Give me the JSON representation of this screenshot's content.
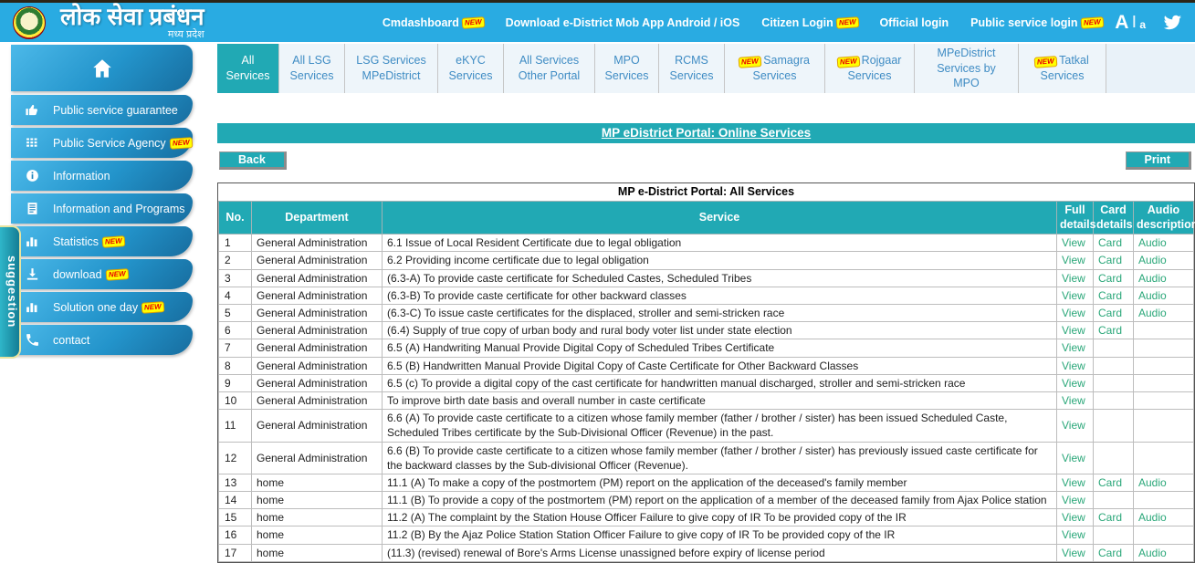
{
  "header": {
    "brand_title": "लोक सेवा प्रबंधन",
    "brand_subtitle": "मध्य प्रदेश",
    "links": [
      {
        "label": "Cmdashboard",
        "new": true
      },
      {
        "label": "Download e-District Mob App Android / iOS",
        "new": false
      },
      {
        "label": "Citizen Login",
        "new": true
      },
      {
        "label": "Official login",
        "new": false
      },
      {
        "label": "Public service login",
        "new": true
      }
    ],
    "font_large": "A",
    "font_separator": "|",
    "font_small": "a",
    "social_icon": "twitter-icon"
  },
  "sidebar": {
    "suggestion_tab": "suggestion",
    "items": [
      {
        "label": "",
        "icon": "home-icon",
        "new": false
      },
      {
        "label": "Public service guarantee",
        "icon": "thumbs-up-icon",
        "new": false
      },
      {
        "label": "Public Service Agency",
        "icon": "grid-icon",
        "new": true
      },
      {
        "label": "Information",
        "icon": "info-icon",
        "new": false
      },
      {
        "label": "Information and Programs",
        "icon": "document-icon",
        "new": false
      },
      {
        "label": "Statistics",
        "icon": "bar-chart-icon",
        "new": true
      },
      {
        "label": "download",
        "icon": "download-icon",
        "new": true
      },
      {
        "label": "Solution one day",
        "icon": "bar-chart-icon",
        "new": true
      },
      {
        "label": "contact",
        "icon": "phone-icon",
        "new": false
      }
    ]
  },
  "tabs": [
    {
      "label": "All Services",
      "active": true,
      "new": false
    },
    {
      "label": "All LSG Services",
      "active": false,
      "new": false
    },
    {
      "label": "LSG Services MPeDistrict",
      "active": false,
      "new": false
    },
    {
      "label": "eKYC Services",
      "active": false,
      "new": false
    },
    {
      "label": "All Services Other Portal",
      "active": false,
      "new": false
    },
    {
      "label": "MPO Services",
      "active": false,
      "new": false
    },
    {
      "label": "RCMS Services",
      "active": false,
      "new": false
    },
    {
      "label": "Samagra Services",
      "active": false,
      "new": true
    },
    {
      "label": "Rojgaar Services",
      "active": false,
      "new": true
    },
    {
      "label": "MPeDistrict Services by MPO",
      "active": false,
      "new": false
    },
    {
      "label": "Tatkal Services",
      "active": false,
      "new": true
    }
  ],
  "page_title": "MP eDistrict Portal: Online Services",
  "buttons": {
    "back": "Back",
    "print": "Print"
  },
  "new_badge_text": "NEW",
  "table": {
    "caption": "MP e-District Portal: All Services",
    "headers": {
      "no": "No.",
      "department": "Department",
      "service": "Service",
      "full": "Full details",
      "card": "Card details",
      "audio": "Audio description"
    },
    "link_labels": {
      "view": "View",
      "card": "Card",
      "audio": "Audio"
    },
    "rows": [
      {
        "no": "1",
        "department": "General Administration",
        "service": "6.1 Issue of Local Resident Certificate due to legal obligation",
        "view": true,
        "card": true,
        "audio": true
      },
      {
        "no": "2",
        "department": "General Administration",
        "service": "6.2 Providing income certificate due to legal obligation",
        "view": true,
        "card": true,
        "audio": true
      },
      {
        "no": "3",
        "department": "General Administration",
        "service": "(6.3-A) To provide caste certificate for Scheduled Castes, Scheduled Tribes",
        "view": true,
        "card": true,
        "audio": true
      },
      {
        "no": "4",
        "department": "General Administration",
        "service": "(6.3-B) To provide caste certificate for other backward classes",
        "view": true,
        "card": true,
        "audio": true
      },
      {
        "no": "5",
        "department": "General Administration",
        "service": "(6.3-C) To issue caste certificates for the displaced, stroller and semi-stricken race",
        "view": true,
        "card": true,
        "audio": true
      },
      {
        "no": "6",
        "department": "General Administration",
        "service": "(6.4) Supply of true copy of urban body and rural body voter list under state election",
        "view": true,
        "card": true,
        "audio": false
      },
      {
        "no": "7",
        "department": "General Administration",
        "service": "6.5 (A) Handwriting Manual Provide Digital Copy of Scheduled Tribes Certificate",
        "view": true,
        "card": false,
        "audio": false
      },
      {
        "no": "8",
        "department": "General Administration",
        "service": "6.5 (B) Handwritten Manual Provide Digital Copy of Caste Certificate for Other Backward Classes",
        "view": true,
        "card": false,
        "audio": false
      },
      {
        "no": "9",
        "department": "General Administration",
        "service": "6.5 (c) To provide a digital copy of the cast certificate for handwritten manual discharged, stroller and semi-stricken race",
        "view": true,
        "card": false,
        "audio": false
      },
      {
        "no": "10",
        "department": "General Administration",
        "service": "To improve birth date basis and overall number in caste certificate",
        "view": true,
        "card": false,
        "audio": false
      },
      {
        "no": "11",
        "department": "General Administration",
        "service": "6.6 (A) To provide caste certificate to a citizen whose family member (father / brother / sister) has been issued Scheduled Caste, Scheduled Tribes certificate by the Sub-Divisional Officer (Revenue) in the past.",
        "view": true,
        "card": false,
        "audio": false
      },
      {
        "no": "12",
        "department": "General Administration",
        "service": "6.6 (B) To provide caste certificate to a citizen whose family member (father / brother / sister) has previously issued caste certificate for the backward classes by the Sub-divisional Officer (Revenue).",
        "view": true,
        "card": false,
        "audio": false
      },
      {
        "no": "13",
        "department": "home",
        "service": "11.1 (A) To make a copy of the postmortem (PM) report on the application of the deceased's family member",
        "view": true,
        "card": true,
        "audio": true
      },
      {
        "no": "14",
        "department": "home",
        "service": "11.1 (B) To provide a copy of the postmortem (PM) report on the application of a member of the deceased family from Ajax Police station",
        "view": true,
        "card": false,
        "audio": false
      },
      {
        "no": "15",
        "department": "home",
        "service": "11.2 (A) The complaint by the Station House Officer Failure to give copy of IR To be provided copy of the IR",
        "view": true,
        "card": true,
        "audio": true
      },
      {
        "no": "16",
        "department": "home",
        "service": "11.2 (B) By the Ajaz Police Station Station Officer Failure to give copy of IR To be provided copy of the IR",
        "view": true,
        "card": false,
        "audio": false
      },
      {
        "no": "17",
        "department": "home",
        "service": "(11.3) (revised) renewal of Bore's Arms License unassigned before expiry of license period",
        "view": true,
        "card": true,
        "audio": true
      }
    ]
  },
  "colors": {
    "header_blue": "#29abe2",
    "teal": "#21a9b4",
    "link_green": "#2aa779",
    "badge_yellow": "#ffff00",
    "badge_red": "#e80000"
  }
}
